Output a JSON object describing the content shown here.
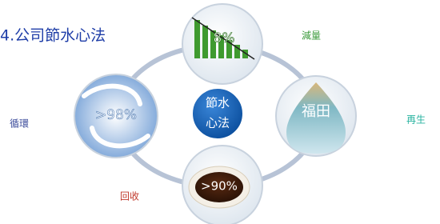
{
  "title": "4.公司節水心法",
  "center": {
    "lines": [
      "節水",
      "心法"
    ]
  },
  "nodes": [
    {
      "label": "減量",
      "text": "8%"
    },
    {
      "label": "再生",
      "text": "福田"
    },
    {
      "label": "回收",
      "text": ">90%"
    },
    {
      "label": "循環",
      "text": ">98%"
    }
  ]
}
